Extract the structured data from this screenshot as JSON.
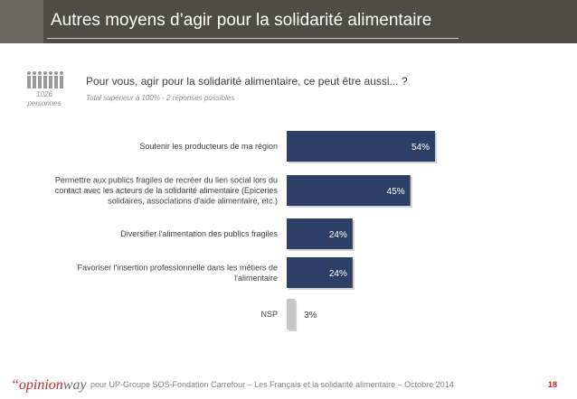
{
  "header": {
    "title": "Autres moyens d’agir pour la solidarité alimentaire"
  },
  "sample": {
    "line1": "1026",
    "line2": "personnes"
  },
  "question": {
    "text": "Pour vous, agir pour la solidarité alimentaire, ce peut être aussi... ?",
    "note": "Total supérieur à 100% - 2 réponses possibles"
  },
  "chart_data": {
    "type": "bar",
    "orientation": "horizontal",
    "categories": [
      [
        "Soutenir les producteurs de ma région"
      ],
      [
        "Permettre aux publics fragiles de recréer du lien social lors du",
        "contact avec les acteurs de la solidarité alimentaire (Epiceries",
        "solidaires, associations d'aide alimentaire, etc.)"
      ],
      [
        "Diversifier l'alimentation des publics fragiles"
      ],
      [
        "Favoriser l'insertion professionnelle dans les métiers de",
        "l'alimentaire"
      ],
      [
        "NSP"
      ]
    ],
    "values": [
      54,
      45,
      24,
      24,
      3
    ],
    "value_labels": [
      "54%",
      "45%",
      "24%",
      "24%",
      "3%"
    ],
    "colors": {
      "bar": "#2e3f66",
      "nsp": "#c6c6c6"
    },
    "xlim": [
      0,
      54
    ]
  },
  "footer": {
    "logo_prefix": "“opinion",
    "logo_brand": "way",
    "text": "pour UP-Groupe SOS-Fondation Carrefour – Les Français et la solidarité alimentaire – Octobre 2014",
    "page": "18"
  }
}
